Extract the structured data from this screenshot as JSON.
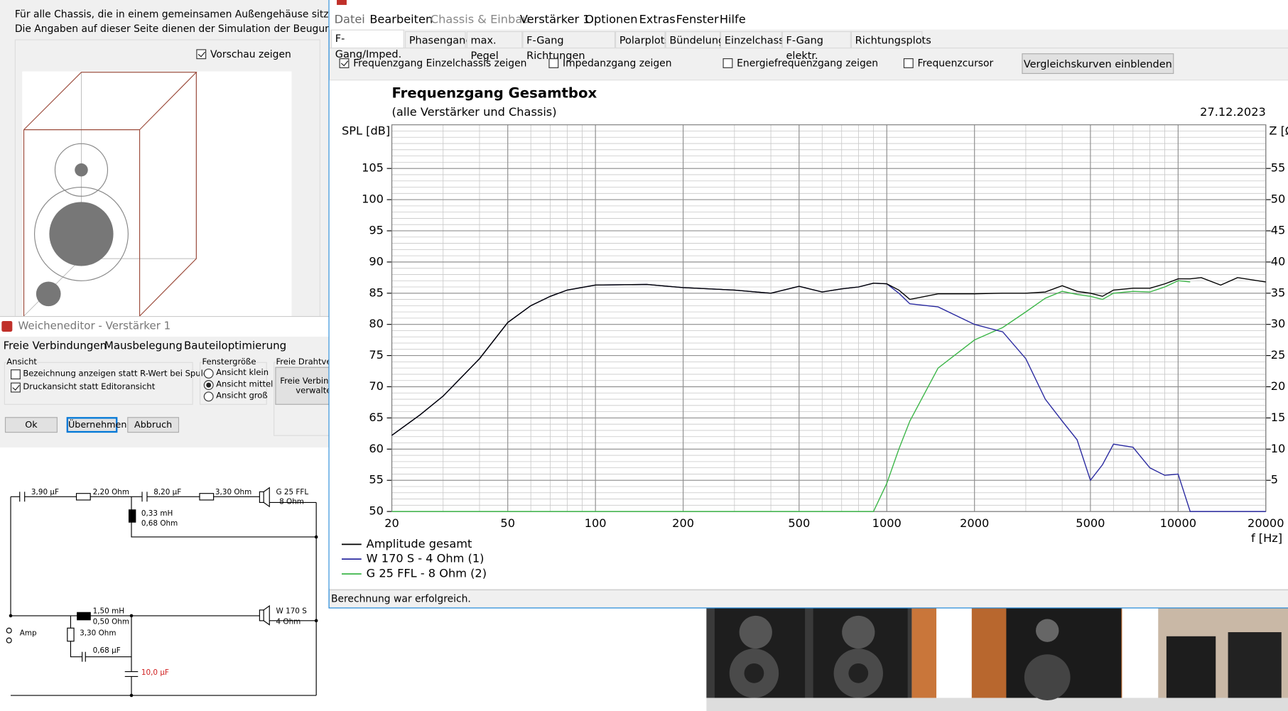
{
  "background_dialog": {
    "lines": [
      "Für alle Chassis, die in einem gemeinsamen Außengehäuse sitzen, können",
      "Die Angaben auf dieser Seite dienen der Simulation der  Beugung des Sch"
    ],
    "preview_checkbox": "Vorschau zeigen"
  },
  "crossover_editor": {
    "title": "Weicheneditor - Verstärker 1",
    "menu": [
      "Freie Verbindungen",
      "Mausbelegung",
      "Bauteiloptimierung"
    ],
    "view": {
      "title": "Ansicht",
      "options": [
        "Bezeichnung anzeigen statt R-Wert bei Spulen",
        "Druckansicht statt Editoransicht"
      ]
    },
    "window_size": {
      "title": "Fenstergröße",
      "options": [
        "Ansicht klein",
        "Ansicht mittel",
        "Ansicht groß"
      ]
    },
    "wires": {
      "title": "Freie Drahtverb",
      "button": [
        "Freie Verbindu",
        "verwalte"
      ]
    },
    "buttons": [
      "Ok",
      "Übernehmen",
      "Abbruch"
    ]
  },
  "circuit": {
    "tweeter_branch": [
      "3,90 µF",
      "2,20 Ohm",
      "8,20 µF",
      "3,30 Ohm",
      "0,33 mH",
      "0,68 Ohm"
    ],
    "tweeter": [
      "G 25 FFL",
      "8 Ohm"
    ],
    "woofer_branch": [
      "1,50 mH",
      "0,50 Ohm",
      "3,30 Ohm",
      "0,68 µF",
      "10,0 µF"
    ],
    "woofer": [
      "W 170 S",
      "4 Ohm"
    ],
    "source": "Amp"
  },
  "main_window": {
    "menu": [
      "Datei",
      "Bearbeiten",
      "Chassis & Einbau",
      "Verstärker 1",
      "Optionen",
      "Extras",
      "Fenster",
      "Hilfe"
    ],
    "tabs": [
      "F-Gang/Imped.",
      "Phasengang",
      "max. Pegel",
      "F-Gang Richtungen",
      "Polarplots",
      "Bündelung",
      "Einzelchassis",
      "F-Gang elektr.",
      "Richtungsplots"
    ],
    "options": [
      "Frequenzgang Einzelchassis zeigen",
      "Impedanzgang zeigen",
      "Energiefrequenzgang zeigen",
      "Frequenzcursor"
    ],
    "compare_button": "Vergleichskurven einblenden",
    "status": "Berechnung war erfolgreich."
  },
  "chart_data": {
    "type": "line",
    "title": "Frequenzgang Gesamtbox",
    "subtitle": "(alle Verstärker und Chassis)",
    "date": "27.12.2023",
    "y_label": "SPL [dB]",
    "y2_label": "Z [Ω]",
    "x_label": "f [Hz]",
    "log_x": true,
    "grid": true,
    "x": [
      20,
      25,
      30,
      40,
      50,
      60,
      70,
      80,
      100,
      150,
      200,
      300,
      400,
      500,
      600,
      700,
      800,
      900,
      1000,
      1100,
      1200,
      1500,
      2000,
      2500,
      3000,
      3500,
      4000,
      4500,
      5000,
      5500,
      6000,
      7000,
      8000,
      9000,
      10000,
      11000,
      12000,
      14000,
      16000,
      20000
    ],
    "xlim": [
      20,
      20000
    ],
    "xticks": [
      20,
      50,
      100,
      200,
      500,
      1000,
      2000,
      5000,
      10000,
      20000
    ],
    "ylim": [
      50,
      112
    ],
    "yticks": [
      50,
      55,
      60,
      65,
      70,
      75,
      80,
      85,
      90,
      95,
      100,
      105
    ],
    "y2lim": [
      0,
      62
    ],
    "y2ticks": [
      5,
      10,
      15,
      20,
      25,
      30,
      35,
      40,
      45,
      50,
      55
    ],
    "series": [
      {
        "name": "Amplitude gesamt",
        "color": "#000000",
        "values": [
          62.2,
          65.5,
          68.5,
          74.5,
          80.3,
          83,
          84.5,
          85.5,
          86.3,
          86.4,
          85.9,
          85.5,
          85,
          86.1,
          85.2,
          85.7,
          86,
          86.6,
          86.5,
          85.5,
          84,
          84.9,
          84.9,
          85,
          85,
          85.2,
          86.2,
          85.3,
          85,
          84.5,
          85.5,
          85.8,
          85.8,
          86.5,
          87.3,
          87.3,
          87.5,
          86.3,
          87.5,
          86.8
        ]
      },
      {
        "name": "W 170 S - 4 Ohm (1)",
        "color": "#2a2aa0",
        "values": [
          62.2,
          65.5,
          68.5,
          74.5,
          80.3,
          83,
          84.5,
          85.5,
          86.3,
          86.4,
          85.9,
          85.5,
          85,
          86.1,
          85.2,
          85.7,
          86,
          86.6,
          86.5,
          85,
          83.3,
          82.8,
          80,
          78.8,
          74.5,
          68,
          64.5,
          61.5,
          55,
          57.5,
          60.8,
          60.3,
          57,
          55.8,
          56,
          50,
          50,
          50,
          50,
          50
        ]
      },
      {
        "name": "G 25 FFL - 8 Ohm (2)",
        "color": "#3cb648",
        "values": [
          50,
          50,
          50,
          50,
          50,
          50,
          50,
          50,
          50,
          50,
          50,
          50,
          50,
          50,
          50,
          50,
          50,
          50,
          54.5,
          60,
          64.5,
          73,
          77.5,
          79.5,
          82,
          84.2,
          85.3,
          84.8,
          84.5,
          84,
          85,
          85.3,
          85.2,
          86,
          87,
          86.8,
          null,
          null,
          null,
          null
        ]
      }
    ]
  }
}
